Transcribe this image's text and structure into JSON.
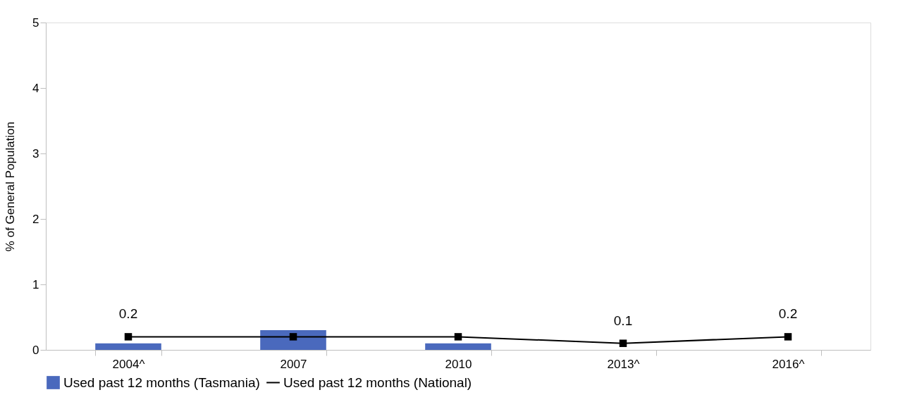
{
  "chart_data": {
    "type": "bar",
    "ylabel": "% of General Population",
    "categories": [
      "2004^",
      "2007",
      "2010",
      "2013^",
      "2016^"
    ],
    "series": [
      {
        "name": "Used past 12 months (Tasmania)",
        "color": "#4a69bd",
        "values": [
          0.1,
          0.3,
          0.1,
          null,
          null
        ]
      },
      {
        "name": "Used past 12 months (National)",
        "type": "line",
        "color": "#000000",
        "marker": "square",
        "values": [
          0.2,
          0.2,
          0.2,
          0.1,
          0.2
        ],
        "value_labels": [
          "0.2",
          null,
          null,
          "0.1",
          "0.2"
        ]
      }
    ],
    "ylim": [
      0,
      5
    ],
    "yticks": [
      0,
      1,
      2,
      3,
      4,
      5
    ],
    "grid": false,
    "legend": "bottom"
  }
}
